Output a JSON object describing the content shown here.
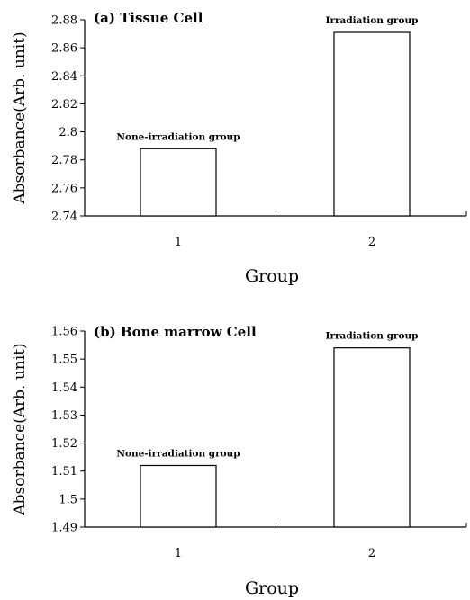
{
  "chart_data": [
    {
      "type": "bar",
      "title": "(a) Tissue Cell",
      "ylabel": "Absorbance(Arb. unit)",
      "xlabel": "Group",
      "categories": [
        "1",
        "2"
      ],
      "values": [
        2.788,
        2.871
      ],
      "bar_labels": [
        "None-irradiation group",
        "Irradiation group"
      ],
      "ylim": [
        2.74,
        2.88
      ],
      "yticks": [
        "2.74",
        "2.76",
        "2.78",
        "2.8",
        "2.82",
        "2.84",
        "2.86",
        "2.88"
      ],
      "grid": false
    },
    {
      "type": "bar",
      "title": "(b) Bone marrow Cell",
      "ylabel": "Absorbance(Arb. unit)",
      "xlabel": "Group",
      "categories": [
        "1",
        "2"
      ],
      "values": [
        1.512,
        1.554
      ],
      "bar_labels": [
        "None-irradiation group",
        "Irradiation group"
      ],
      "ylim": [
        1.49,
        1.56
      ],
      "yticks": [
        "1.49",
        "1.5",
        "1.51",
        "1.52",
        "1.53",
        "1.54",
        "1.55",
        "1.56"
      ],
      "grid": false
    }
  ]
}
